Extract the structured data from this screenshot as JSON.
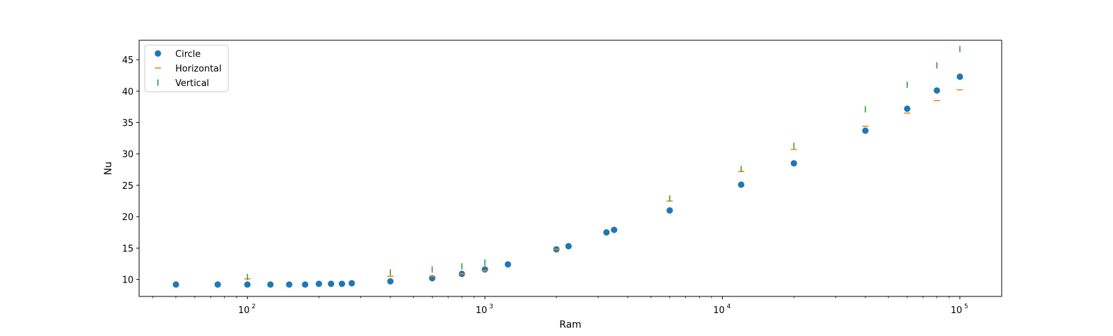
{
  "chart_data": {
    "type": "scatter",
    "title": "",
    "xlabel": "Ram",
    "ylabel": "Nu",
    "xscale": "log",
    "xlim": [
      35,
      150000
    ],
    "ylim": [
      7.3,
      48.1
    ],
    "grid": false,
    "legend_position": "top-left",
    "x_ticks": [
      {
        "value": 100,
        "base": "10",
        "exp": "2"
      },
      {
        "value": 1000,
        "base": "10",
        "exp": "3"
      },
      {
        "value": 10000,
        "base": "10",
        "exp": "4"
      },
      {
        "value": 100000,
        "base": "10",
        "exp": "5"
      }
    ],
    "y_ticks": [
      "10",
      "15",
      "20",
      "25",
      "30",
      "35",
      "40",
      "45"
    ],
    "series": [
      {
        "name": "Circle",
        "marker": "circle",
        "color": "#1f77b4",
        "x": [
          50,
          75,
          100,
          125,
          150,
          175,
          200,
          225,
          250,
          275,
          400,
          600,
          800,
          1000,
          1250,
          2000,
          2250,
          3250,
          3500,
          6000,
          12000,
          20000,
          40000,
          60000,
          80000,
          100000
        ],
        "y": [
          9.2,
          9.2,
          9.2,
          9.2,
          9.2,
          9.2,
          9.3,
          9.3,
          9.3,
          9.4,
          9.7,
          10.2,
          10.9,
          11.6,
          12.4,
          14.8,
          15.3,
          17.5,
          17.9,
          21.0,
          25.1,
          28.5,
          33.7,
          37.2,
          40.1,
          42.3
        ]
      },
      {
        "name": "Horizontal",
        "marker": "hline",
        "color": "#ff7f0e",
        "x": [
          100,
          400,
          600,
          800,
          1000,
          2000,
          6000,
          12000,
          20000,
          40000,
          60000,
          80000,
          100000
        ],
        "y": [
          10.1,
          10.5,
          10.5,
          10.9,
          11.4,
          14.8,
          22.5,
          27.2,
          30.7,
          34.4,
          36.5,
          38.5,
          40.2
        ]
      },
      {
        "name": "Vertical",
        "marker": "vline",
        "color": "#2ca02c",
        "x": [
          100,
          400,
          600,
          800,
          1000,
          6000,
          12000,
          20000,
          40000,
          60000,
          80000,
          100000
        ],
        "y": [
          10.4,
          11.1,
          11.6,
          12.1,
          12.7,
          22.9,
          27.6,
          31.3,
          37.1,
          41.0,
          44.1,
          46.7
        ]
      }
    ]
  }
}
